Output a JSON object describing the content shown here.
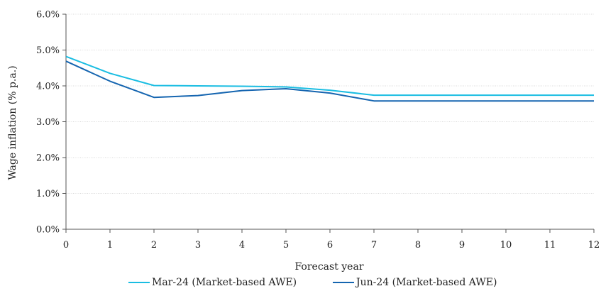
{
  "chart_data": {
    "type": "line",
    "title": "",
    "xlabel": "Forecast year",
    "ylabel": "Wage inflation (% p.a.)",
    "x": [
      0,
      1,
      2,
      3,
      4,
      5,
      6,
      7,
      8,
      9,
      10,
      11,
      12
    ],
    "x_tick_labels": [
      "0",
      "1",
      "2",
      "3",
      "4",
      "5",
      "6",
      "7",
      "8",
      "9",
      "10",
      "11",
      "12"
    ],
    "xlim": [
      0,
      12
    ],
    "ylim": [
      0,
      6
    ],
    "y_ticks": [
      0,
      1,
      2,
      3,
      4,
      5,
      6
    ],
    "y_tick_labels": [
      "0.0%",
      "1.0%",
      "2.0%",
      "3.0%",
      "4.0%",
      "5.0%",
      "6.0%"
    ],
    "grid": "horizontal",
    "legend_position": "bottom",
    "series": [
      {
        "name": "Mar-24 (Market-based AWE)",
        "color": "#1ABDE2",
        "values": [
          4.82,
          4.35,
          4.01,
          4.0,
          3.99,
          3.97,
          3.88,
          3.74,
          3.74,
          3.74,
          3.74,
          3.74,
          3.74
        ]
      },
      {
        "name": "Jun-24 (Market-based AWE)",
        "color": "#1565B0",
        "values": [
          4.69,
          4.13,
          3.68,
          3.73,
          3.87,
          3.92,
          3.8,
          3.58,
          3.58,
          3.58,
          3.58,
          3.58,
          3.58
        ]
      }
    ]
  }
}
